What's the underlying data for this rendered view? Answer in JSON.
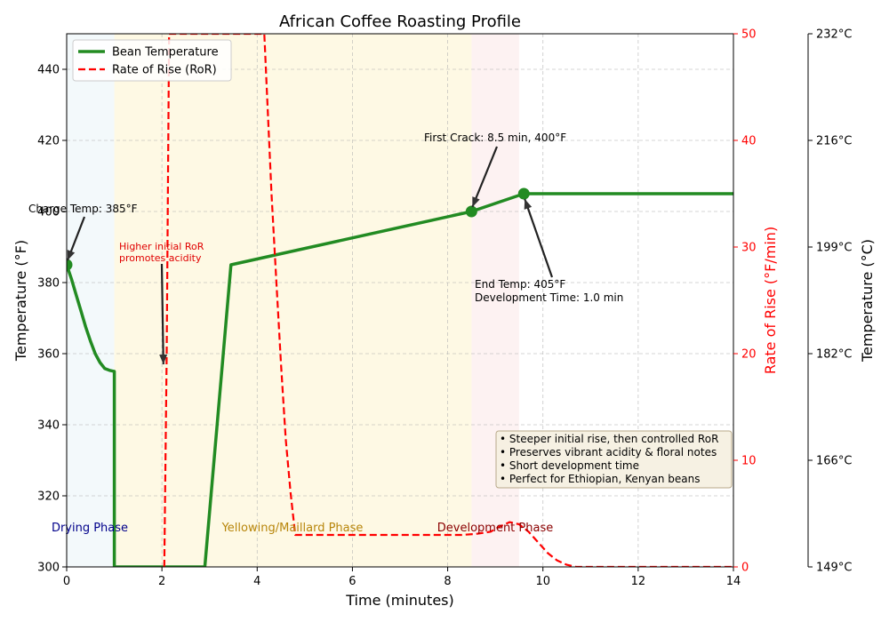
{
  "chart_data": {
    "type": "line",
    "title": "African Coffee Roasting Profile",
    "xlabel": "Time (minutes)",
    "ylabel": "Temperature (°F)",
    "y2label": "Rate of Rise (°F/min)",
    "y3label": "Temperature (°C)",
    "xlim": [
      0,
      14
    ],
    "ylim": [
      300,
      450
    ],
    "y2lim": [
      0,
      50
    ],
    "x_ticks": [
      0,
      2,
      4,
      6,
      8,
      10,
      12,
      14
    ],
    "y_ticks": [
      300,
      320,
      340,
      360,
      380,
      400,
      420,
      440
    ],
    "y2_ticks": [
      0,
      10,
      20,
      30,
      40,
      50
    ],
    "y3_ticks": [
      {
        "value": 300,
        "label": "149°C"
      },
      {
        "value": 330,
        "label": "166°C"
      },
      {
        "value": 360,
        "label": "182°C"
      },
      {
        "value": 390,
        "label": "199°C"
      },
      {
        "value": 420,
        "label": "216°C"
      },
      {
        "value": 450,
        "label": "232°C"
      }
    ],
    "grid": true,
    "legend": "top-left",
    "phases": [
      {
        "name": "Drying Phase",
        "start": 0,
        "end": 1,
        "color": "#add8e6",
        "label_color": "#00008b"
      },
      {
        "name": "Yellowing/Maillard Phase",
        "start": 1,
        "end": 8.5,
        "color": "#f5d547",
        "label_color": "#b8860b"
      },
      {
        "name": "Development Phase",
        "start": 8.5,
        "end": 9.5,
        "color": "#f4a6a6",
        "label_color": "#8b0000"
      }
    ],
    "series": [
      {
        "name": "Bean Temperature",
        "axis": "left",
        "color": "#228b22",
        "style": "solid",
        "points": [
          [
            0,
            385
          ],
          [
            0.1,
            381
          ],
          [
            0.2,
            376.5
          ],
          [
            0.3,
            372
          ],
          [
            0.4,
            367.5
          ],
          [
            0.5,
            363.5
          ],
          [
            0.6,
            360
          ],
          [
            0.7,
            357.5
          ],
          [
            0.8,
            355.8
          ],
          [
            0.9,
            355.3
          ],
          [
            1.0,
            355
          ],
          [
            1.0,
            300
          ],
          [
            2.9,
            300
          ],
          [
            3.45,
            385
          ],
          [
            8.5,
            400
          ],
          [
            9.6,
            405
          ],
          [
            14,
            405
          ]
        ],
        "markers": [
          [
            0,
            385
          ],
          [
            8.5,
            400
          ],
          [
            9.6,
            405
          ]
        ]
      },
      {
        "name": "Rate of Rise (RoR)",
        "axis": "right",
        "color": "#ff0000",
        "style": "dashed",
        "points": [
          [
            2.05,
            0
          ],
          [
            2.1,
            20
          ],
          [
            2.15,
            50
          ],
          [
            4.15,
            50
          ],
          [
            4.3,
            35
          ],
          [
            4.4,
            27
          ],
          [
            4.5,
            19
          ],
          [
            4.6,
            12
          ],
          [
            4.7,
            7
          ],
          [
            4.8,
            3
          ],
          [
            8.3,
            3
          ],
          [
            8.6,
            3.1
          ],
          [
            8.9,
            3.3
          ],
          [
            9.1,
            3.8
          ],
          [
            9.3,
            4.2
          ],
          [
            9.5,
            4.0
          ],
          [
            9.7,
            3.3
          ],
          [
            9.9,
            2.3
          ],
          [
            10.1,
            1.3
          ],
          [
            10.3,
            0.6
          ],
          [
            10.5,
            0.2
          ],
          [
            10.7,
            0
          ],
          [
            14,
            0
          ]
        ]
      }
    ],
    "annotations": [
      {
        "text": "Charge Temp: 385°F",
        "target": [
          0,
          385
        ],
        "lines": [
          "Charge Temp: 385°F"
        ]
      },
      {
        "text": "Higher initial RoR promotes acidity",
        "lines": [
          "Higher initial RoR",
          "promotes acidity"
        ],
        "target": [
          2.05,
          357
        ]
      },
      {
        "text": "First Crack: 8.5 min, 400°F",
        "target": [
          8.5,
          400
        ],
        "lines": [
          "First Crack: 8.5 min, 400°F"
        ]
      },
      {
        "text": "End Temp: 405°F Development Time: 1.0 min",
        "target": [
          9.6,
          405
        ],
        "lines": [
          "End Temp: 405°F",
          "Development Time: 1.0 min"
        ]
      }
    ],
    "notes": [
      "• Steeper initial rise, then controlled RoR",
      "• Preserves vibrant acidity & floral notes",
      "• Short development time",
      "• Perfect for Ethiopian, Kenyan beans"
    ]
  }
}
